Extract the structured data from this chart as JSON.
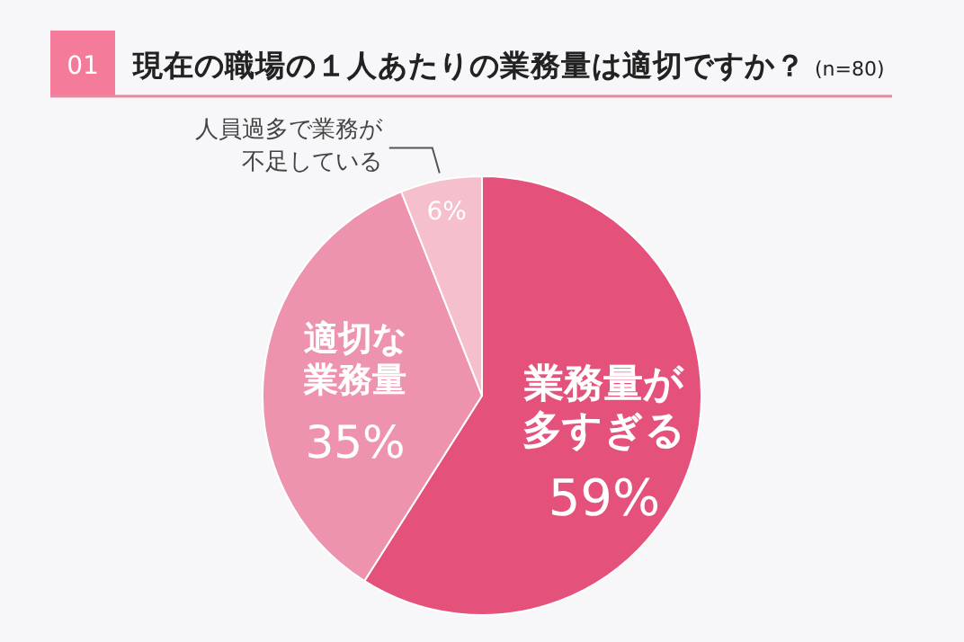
{
  "chart_data": {
    "type": "pie",
    "title": "現在の職場の１人あたりの業務量は適切ですか？",
    "subtitle": "(n=80)",
    "annotations": [
      "01"
    ],
    "categories": [
      "業務量が多すぎる",
      "適切な業務量",
      "人員過多で業務が不足している"
    ],
    "values": [
      59,
      35,
      6
    ],
    "colors": [
      "#e4527c",
      "#ee93ae",
      "#f6bfcc"
    ],
    "value_labels": [
      "59%",
      "35%",
      "6%"
    ]
  }
}
